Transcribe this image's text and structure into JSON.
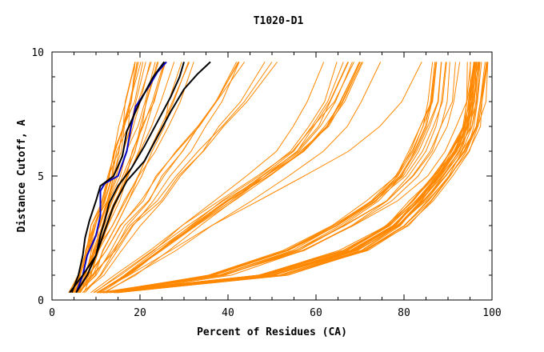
{
  "chart_data": {
    "type": "line",
    "title": "T1020-D1",
    "xlabel": "Percent of Residues (CA)",
    "ylabel": "Distance Cutoff, A",
    "xlim": [
      0,
      100
    ],
    "ylim": [
      0,
      10
    ],
    "x_ticks": [
      0,
      20,
      40,
      60,
      80,
      100
    ],
    "y_ticks": [
      0,
      5,
      10
    ],
    "x_tick_labels": [
      "0",
      "20",
      "40",
      "60",
      "80",
      "100"
    ],
    "y_tick_labels": [
      "0",
      "5",
      "10"
    ],
    "grid": false,
    "legend": "none",
    "colors": {
      "background_series": "#ff8800",
      "highlight_blue": "#0000cc",
      "highlight_black": "#000000",
      "axis": "#000000"
    },
    "groups": [
      {
        "color": "#ff8800",
        "count": 28,
        "x_low": [
          1.5,
          4.5
        ],
        "x_high": [
          94,
          100
        ],
        "y_start": 0.35,
        "curve": "convex",
        "profile": [
          [
            0.3,
            0.1
          ],
          [
            1,
            0.5
          ],
          [
            2,
            0.7
          ],
          [
            3,
            0.8
          ],
          [
            4,
            0.86
          ],
          [
            5,
            0.91
          ],
          [
            6,
            0.95
          ],
          [
            7,
            0.98
          ],
          [
            8,
            0.99
          ],
          [
            9.6,
            1.0
          ]
        ]
      },
      {
        "color": "#ff8800",
        "count": 14,
        "x_low": [
          2,
          5
        ],
        "x_high": [
          82,
          98
        ],
        "y_start": 0.3,
        "curve": "mid-convex",
        "profile": [
          [
            0.3,
            0.1
          ],
          [
            1,
            0.4
          ],
          [
            2,
            0.6
          ],
          [
            3,
            0.73
          ],
          [
            4,
            0.83
          ],
          [
            5,
            0.9
          ],
          [
            6,
            0.94
          ],
          [
            7,
            0.97
          ],
          [
            8,
            0.99
          ],
          [
            9.6,
            1.0
          ]
        ]
      },
      {
        "color": "#ff8800",
        "count": 14,
        "x_low": [
          3,
          6
        ],
        "x_high": [
          55,
          95
        ],
        "y_start": 0.3,
        "curve": "bend",
        "profile": [
          [
            0.3,
            0.08
          ],
          [
            1,
            0.18
          ],
          [
            2,
            0.3
          ],
          [
            3,
            0.42
          ],
          [
            4,
            0.55
          ],
          [
            5,
            0.68
          ],
          [
            6,
            0.8
          ],
          [
            7,
            0.88
          ],
          [
            8,
            0.94
          ],
          [
            9.6,
            1.0
          ]
        ]
      },
      {
        "color": "#ff8800",
        "count": 22,
        "x_low": [
          4,
          7
        ],
        "x_high": [
          12,
          35
        ],
        "y_start": 0.3,
        "curve": "steep",
        "profile": [
          [
            0.3,
            0.0
          ],
          [
            1,
            0.12
          ],
          [
            2,
            0.22
          ],
          [
            3,
            0.33
          ],
          [
            4,
            0.45
          ],
          [
            5,
            0.56
          ],
          [
            6,
            0.67
          ],
          [
            7,
            0.78
          ],
          [
            8,
            0.87
          ],
          [
            9.6,
            1.0
          ]
        ]
      },
      {
        "color": "#ff8800",
        "count": 8,
        "x_low": [
          4,
          8
        ],
        "x_high": [
          38,
          55
        ],
        "y_start": 0.3,
        "curve": "steep",
        "profile": [
          [
            0.3,
            0.0
          ],
          [
            1,
            0.1
          ],
          [
            2,
            0.2
          ],
          [
            3,
            0.3
          ],
          [
            4,
            0.42
          ],
          [
            5,
            0.52
          ],
          [
            6,
            0.64
          ],
          [
            7,
            0.75
          ],
          [
            8,
            0.86
          ],
          [
            9.6,
            1.0
          ]
        ]
      }
    ],
    "highlight_series": [
      {
        "color": "#0000cc",
        "points": [
          [
            5.5,
            0.3
          ],
          [
            7,
            1.0
          ],
          [
            8,
            1.8
          ],
          [
            9,
            2.2
          ],
          [
            10,
            2.6
          ],
          [
            11,
            3.4
          ],
          [
            11,
            4.4
          ],
          [
            12,
            4.7
          ],
          [
            15,
            5.0
          ],
          [
            17,
            6.0
          ],
          [
            18,
            7.0
          ],
          [
            19,
            7.8
          ],
          [
            22,
            8.6
          ],
          [
            24,
            9.2
          ],
          [
            26,
            9.6
          ]
        ]
      },
      {
        "color": "#000000",
        "points": [
          [
            4.5,
            0.3
          ],
          [
            6,
            1.0
          ],
          [
            7,
            1.8
          ],
          [
            7.5,
            2.5
          ],
          [
            8.5,
            3.2
          ],
          [
            10,
            4.0
          ],
          [
            11,
            4.6
          ],
          [
            14,
            5.0
          ],
          [
            16,
            5.8
          ],
          [
            17,
            6.8
          ],
          [
            20,
            8.0
          ],
          [
            23,
            9.0
          ],
          [
            25.5,
            9.6
          ]
        ]
      },
      {
        "color": "#000000",
        "points": [
          [
            5.5,
            0.3
          ],
          [
            8,
            1.0
          ],
          [
            10,
            1.8
          ],
          [
            11,
            2.6
          ],
          [
            12,
            3.2
          ],
          [
            13,
            3.9
          ],
          [
            15,
            4.6
          ],
          [
            18,
            5.3
          ],
          [
            21,
            6.2
          ],
          [
            24,
            7.2
          ],
          [
            27,
            8.2
          ],
          [
            29,
            9.0
          ],
          [
            30,
            9.6
          ]
        ]
      },
      {
        "color": "#000000",
        "points": [
          [
            4,
            0.3
          ],
          [
            7,
            1.0
          ],
          [
            10,
            1.8
          ],
          [
            12,
            2.8
          ],
          [
            14,
            3.8
          ],
          [
            17,
            4.8
          ],
          [
            21,
            5.6
          ],
          [
            24,
            6.6
          ],
          [
            27,
            7.6
          ],
          [
            30,
            8.5
          ],
          [
            33,
            9.1
          ],
          [
            36,
            9.6
          ]
        ]
      }
    ]
  }
}
